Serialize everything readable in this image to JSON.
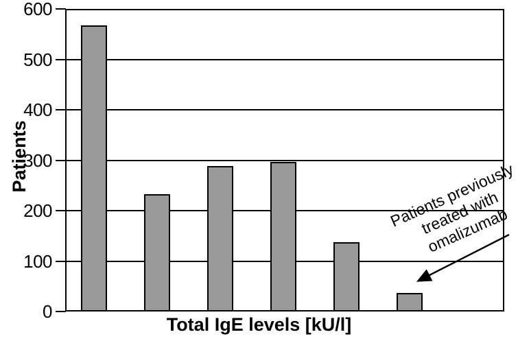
{
  "figure": {
    "ylabel": "Patients",
    "xlabel": "Total IgE levels [kU/l]",
    "y_ticks": [
      "600",
      "500",
      "400",
      "300",
      "200",
      "100",
      "0"
    ],
    "annotation_lines": [
      "Patients previously",
      "treated with",
      "omalizumab"
    ],
    "colors": {
      "bar_fill": "#9a9a9a",
      "line": "#000000",
      "background": "#ffffff"
    }
  },
  "chart_data": {
    "type": "bar",
    "categories": [
      "",
      "",
      "",
      "",
      "",
      ""
    ],
    "values": [
      570,
      232,
      289,
      297,
      136,
      35
    ],
    "title": "",
    "xlabel": "Total IgE levels [kU/l]",
    "ylabel": "Patients",
    "ylim": [
      0,
      600
    ],
    "ytick_interval": 100,
    "grid": "horizontal",
    "legend": "none",
    "bar_color": "#9a9a9a",
    "annotation": {
      "text": "Patients previously treated with omalizumab",
      "lines": [
        "Patients previously",
        "treated with",
        "omalizumab"
      ],
      "rotation_deg": -24,
      "arrow_points_to": "last bar"
    }
  }
}
